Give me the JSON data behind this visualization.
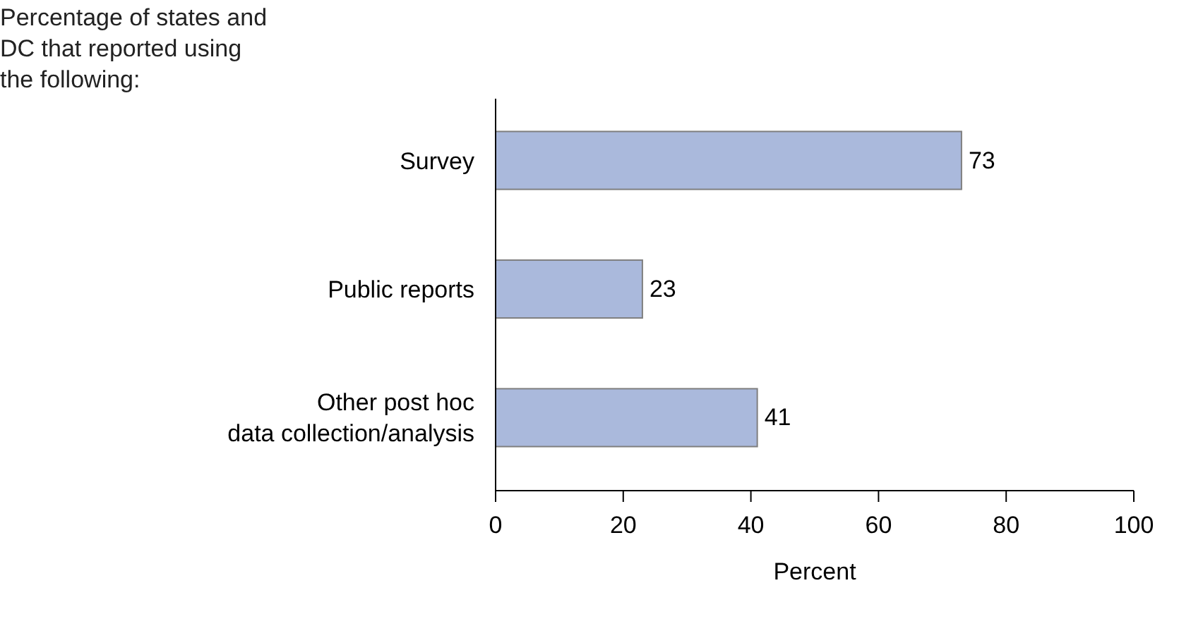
{
  "chart_data": {
    "type": "bar",
    "orientation": "horizontal",
    "title": "Percentage of states and DC that reported using the following:",
    "xlabel": "Percent",
    "categories": [
      "Survey",
      "Public reports",
      "Other post hoc data collection/analysis"
    ],
    "values": [
      73,
      23,
      41
    ],
    "color": "#aab9dc",
    "xlim": [
      0,
      100
    ],
    "xticks": [
      0,
      20,
      40,
      60,
      80,
      100
    ],
    "data_labels": true
  }
}
